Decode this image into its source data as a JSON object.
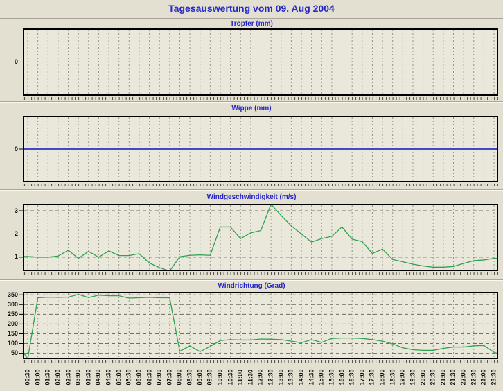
{
  "page": {
    "title": "Tagesauswertung vom 09. Aug 2004",
    "background": "#e3e0d2",
    "title_color": "#2828c8",
    "accent_blue": "#2323c8"
  },
  "chart_data": {
    "type": "line",
    "grid": true,
    "legend": "none",
    "categories": [
      "00:30",
      "01:00",
      "01:30",
      "02:00",
      "02:30",
      "03:00",
      "03:30",
      "04:00",
      "04:30",
      "05:00",
      "05:30",
      "06:00",
      "06:30",
      "07:00",
      "07:30",
      "08:00",
      "08:30",
      "09:00",
      "09:30",
      "10:00",
      "10:30",
      "11:00",
      "11:30",
      "12:00",
      "12:30",
      "13:00",
      "13:30",
      "14:00",
      "14:30",
      "15:00",
      "15:30",
      "16:00",
      "16:30",
      "17:00",
      "17:30",
      "18:00",
      "18:30",
      "19:00",
      "19:30",
      "20:00",
      "20:30",
      "21:00",
      "21:30",
      "22:00",
      "22:30",
      "23:00",
      "23:30"
    ],
    "charts": [
      {
        "id": "tropfer",
        "title": "Tropfer (mm)",
        "ylabel_unit": "mm",
        "yticks": [
          0
        ],
        "ylim": [
          -1,
          1
        ],
        "hgrid": false,
        "line_color": "#2a2ab8",
        "line_width": 1,
        "edge_start": 0,
        "edge_end": 0,
        "values": [
          0,
          0,
          0,
          0,
          0,
          0,
          0,
          0,
          0,
          0,
          0,
          0,
          0,
          0,
          0,
          0,
          0,
          0,
          0,
          0,
          0,
          0,
          0,
          0,
          0,
          0,
          0,
          0,
          0,
          0,
          0,
          0,
          0,
          0,
          0,
          0,
          0,
          0,
          0,
          0,
          0,
          0,
          0,
          0,
          0,
          0,
          0
        ]
      },
      {
        "id": "wippe",
        "title": "Wippe (mm)",
        "ylabel_unit": "mm",
        "yticks": [
          0
        ],
        "ylim": [
          -1,
          1
        ],
        "hgrid": false,
        "line_color": "#4646cc",
        "line_width": 2,
        "edge_start": 0,
        "edge_end": 0,
        "values": [
          0,
          0,
          0,
          0,
          0,
          0,
          0,
          0,
          0,
          0,
          0,
          0,
          0,
          0,
          0,
          0,
          0,
          0,
          0,
          0,
          0,
          0,
          0,
          0,
          0,
          0,
          0,
          0,
          0,
          0,
          0,
          0,
          0,
          0,
          0,
          0,
          0,
          0,
          0,
          0,
          0,
          0,
          0,
          0,
          0,
          0,
          0
        ]
      },
      {
        "id": "windgeschwindigkeit",
        "title": "Windgeschwindigkeit (m/s)",
        "ylabel_unit": "m/s",
        "yticks": [
          1,
          2,
          3
        ],
        "ylim": [
          0.4,
          3.3
        ],
        "hgrid": true,
        "line_color": "#2fa04f",
        "line_width": 1.3,
        "edge_start": 1.03,
        "edge_end": 0.95,
        "values": [
          1.03,
          1.0,
          1.0,
          1.05,
          1.3,
          0.95,
          1.25,
          1.0,
          1.27,
          1.07,
          1.07,
          1.15,
          0.75,
          0.55,
          0.4,
          1.02,
          1.08,
          1.1,
          1.08,
          2.3,
          2.3,
          1.8,
          2.05,
          2.15,
          3.28,
          2.8,
          2.35,
          2.0,
          1.65,
          1.8,
          1.9,
          2.3,
          1.78,
          1.67,
          1.16,
          1.35,
          0.9,
          0.8,
          0.7,
          0.62,
          0.57,
          0.57,
          0.6,
          0.73,
          0.85,
          0.88,
          0.95
        ]
      },
      {
        "id": "windrichtung",
        "title": "Windrichtung (Grad)",
        "ylabel_unit": "Grad",
        "yticks": [
          50,
          100,
          150,
          200,
          250,
          300,
          350
        ],
        "ylim": [
          20,
          365
        ],
        "hgrid": true,
        "line_color": "#2fa04f",
        "line_width": 1.3,
        "edge_start": 60,
        "edge_end": 48,
        "values": [
          20,
          335,
          338,
          337,
          338,
          352,
          336,
          348,
          345,
          345,
          333,
          335,
          337,
          335,
          335,
          60,
          88,
          58,
          85,
          115,
          120,
          118,
          118,
          123,
          122,
          120,
          112,
          104,
          120,
          106,
          126,
          128,
          128,
          126,
          120,
          112,
          98,
          78,
          68,
          65,
          65,
          75,
          82,
          82,
          88,
          90,
          55
        ]
      }
    ]
  }
}
